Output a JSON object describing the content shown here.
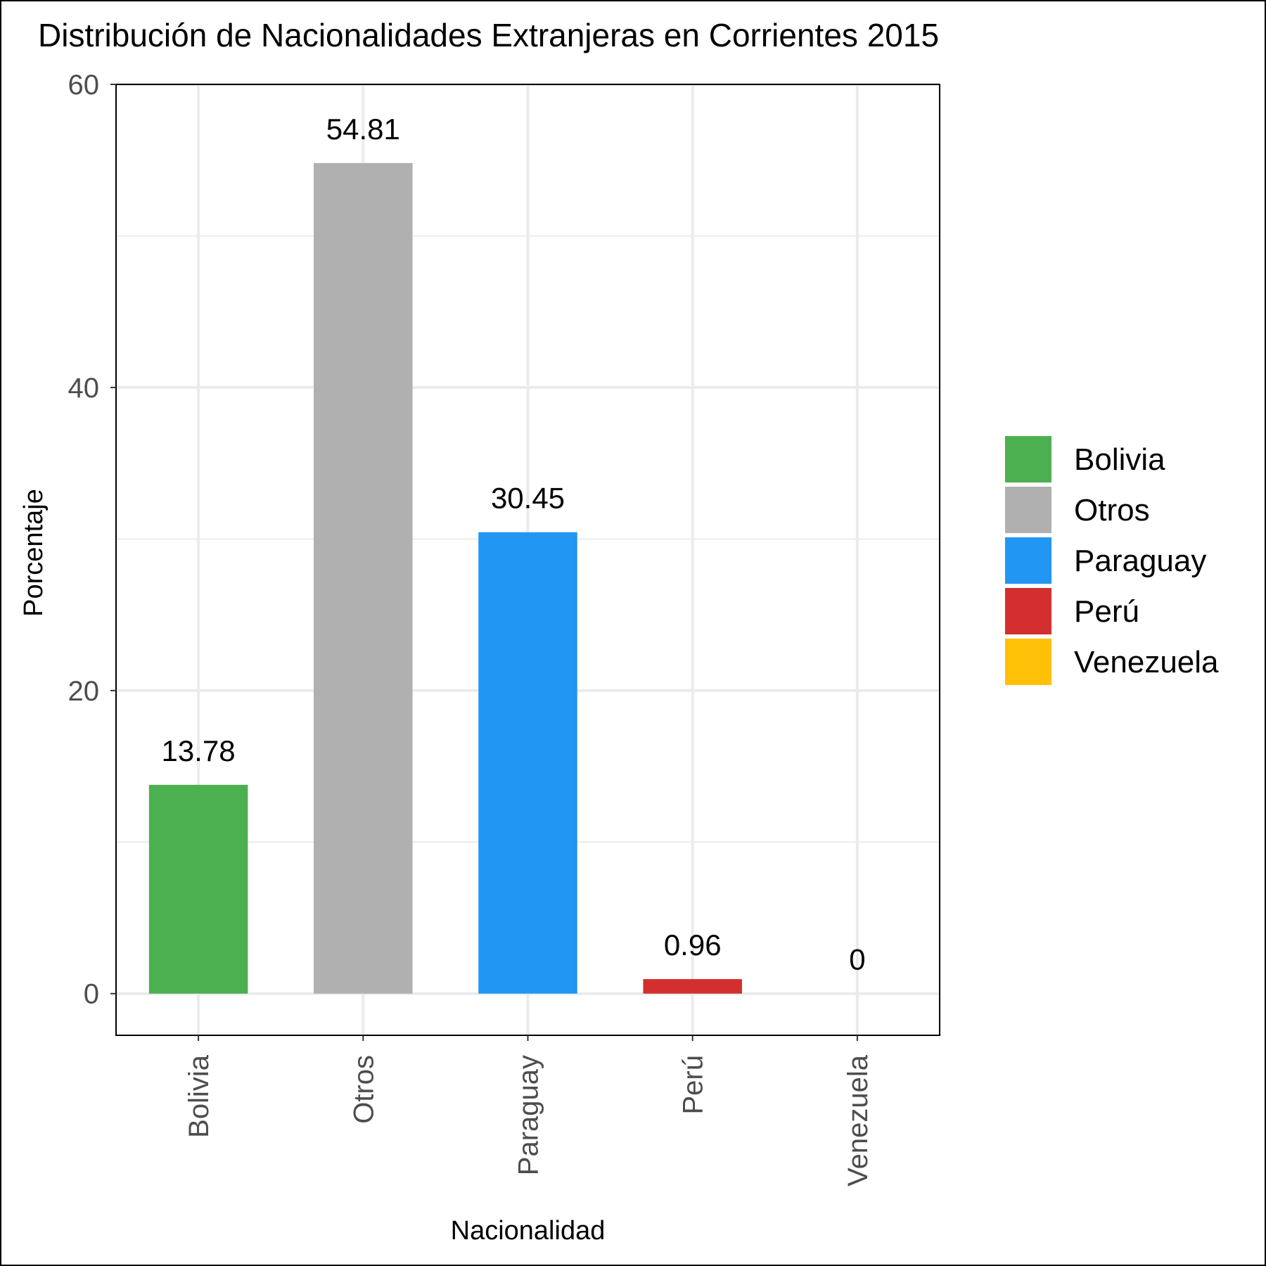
{
  "chart_data": {
    "type": "bar",
    "title": "Distribución de Nacionalidades Extranjeras en Corrientes 2015",
    "xlabel": "Nacionalidad",
    "ylabel": "Porcentaje",
    "categories": [
      "Bolivia",
      "Otros",
      "Paraguay",
      "Perú",
      "Venezuela"
    ],
    "values": [
      13.78,
      54.81,
      30.45,
      0.96,
      0
    ],
    "value_labels": [
      "13.78",
      "54.81",
      "30.45",
      "0.96",
      "0"
    ],
    "colors": [
      "#4caf50",
      "#b0b0b0",
      "#2196f3",
      "#d32f2f",
      "#ffc107"
    ],
    "ylim": [
      -2.75,
      60
    ],
    "yticks": [
      0,
      20,
      40,
      60
    ],
    "grid": true,
    "legend": {
      "placement": "right",
      "entries": [
        "Bolivia",
        "Otros",
        "Paraguay",
        "Perú",
        "Venezuela"
      ]
    }
  }
}
